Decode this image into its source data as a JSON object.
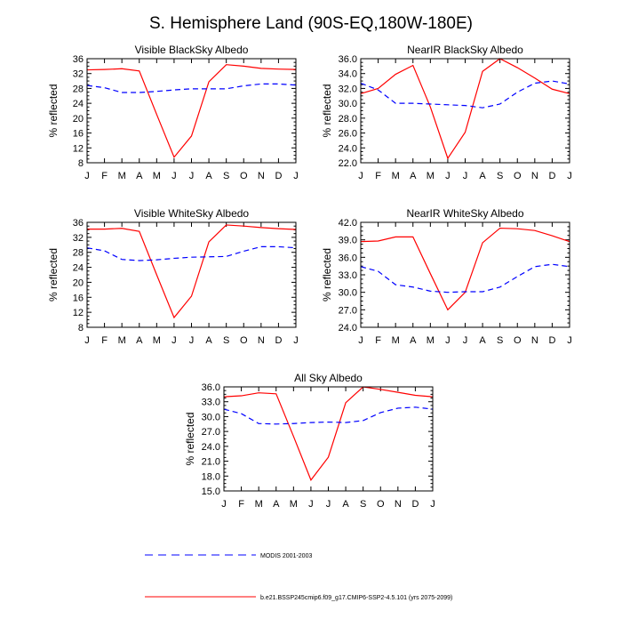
{
  "title": "S. Hemisphere Land (90S-EQ,180W-180E)",
  "colors": {
    "model": "#ff0000",
    "modis": "#0000ff"
  },
  "legend": {
    "modis": "MODIS 2001-2003",
    "model": "b.e21.BSSP245cmip6.f09_g17.CMIP6-SSP2-4.5.101 (yrs 2075-2099)"
  },
  "chart_data": [
    {
      "type": "line",
      "title": "Visible BlackSky Albedo",
      "ylabel": "% reflected",
      "xlabel": "",
      "categories": [
        "J",
        "F",
        "M",
        "A",
        "M",
        "J",
        "J",
        "A",
        "S",
        "O",
        "N",
        "D",
        "J"
      ],
      "ylim": [
        8,
        36
      ],
      "yticks": [
        "8",
        "12",
        "16",
        "20",
        "24",
        "28",
        "32",
        "36"
      ],
      "series": [
        {
          "name": "b.e21.BSSP245cmip6.f09_g17.CMIP6-SSP2-4.5.101 (yrs 2075-2099)",
          "style": "solid",
          "values": [
            33.0,
            33.1,
            33.3,
            32.7,
            21.0,
            9.5,
            15.2,
            29.8,
            34.4,
            34.0,
            33.4,
            33.2,
            33.1
          ]
        },
        {
          "name": "MODIS 2001-2003",
          "style": "dashed",
          "values": [
            28.8,
            28.2,
            26.9,
            26.9,
            27.2,
            27.6,
            27.9,
            27.9,
            27.9,
            28.7,
            29.2,
            29.2,
            28.9
          ]
        }
      ]
    },
    {
      "type": "line",
      "title": "NearIR BlackSky Albedo",
      "ylabel": "% reflected",
      "xlabel": "",
      "categories": [
        "J",
        "F",
        "M",
        "A",
        "M",
        "J",
        "J",
        "A",
        "S",
        "O",
        "N",
        "D",
        "J"
      ],
      "ylim": [
        22,
        36
      ],
      "yticks": [
        "22.0",
        "24.0",
        "26.0",
        "28.0",
        "30.0",
        "32.0",
        "34.0",
        "36.0"
      ],
      "series": [
        {
          "name": "b.e21.BSSP245cmip6.f09_g17.CMIP6-SSP2-4.5.101 (yrs 2075-2099)",
          "style": "solid",
          "values": [
            31.3,
            32.0,
            33.9,
            35.1,
            29.5,
            22.6,
            26.1,
            34.3,
            36.0,
            34.8,
            33.4,
            31.9,
            31.3
          ]
        },
        {
          "name": "MODIS 2001-2003",
          "style": "dashed",
          "values": [
            32.7,
            31.8,
            30.0,
            30.0,
            29.9,
            29.8,
            29.7,
            29.4,
            29.9,
            31.5,
            32.7,
            33.0,
            32.6
          ]
        }
      ]
    },
    {
      "type": "line",
      "title": "Visible WhiteSky Albedo",
      "ylabel": "% reflected",
      "xlabel": "",
      "categories": [
        "J",
        "F",
        "M",
        "A",
        "M",
        "J",
        "J",
        "A",
        "S",
        "O",
        "N",
        "D",
        "J"
      ],
      "ylim": [
        8,
        36
      ],
      "yticks": [
        "8",
        "12",
        "16",
        "20",
        "24",
        "28",
        "32",
        "36"
      ],
      "series": [
        {
          "name": "b.e21.BSSP245cmip6.f09_g17.CMIP6-SSP2-4.5.101 (yrs 2075-2099)",
          "style": "solid",
          "values": [
            34.2,
            34.2,
            34.4,
            33.6,
            22.0,
            10.6,
            16.3,
            30.8,
            35.3,
            35.0,
            34.6,
            34.3,
            34.1
          ]
        },
        {
          "name": "MODIS 2001-2003",
          "style": "dashed",
          "values": [
            29.2,
            28.4,
            26.1,
            25.8,
            26.0,
            26.4,
            26.7,
            26.8,
            26.9,
            28.3,
            29.5,
            29.5,
            29.2
          ]
        }
      ]
    },
    {
      "type": "line",
      "title": "NearIR WhiteSky Albedo",
      "ylabel": "% reflected",
      "xlabel": "",
      "categories": [
        "J",
        "F",
        "M",
        "A",
        "M",
        "J",
        "J",
        "A",
        "S",
        "O",
        "N",
        "D",
        "J"
      ],
      "ylim": [
        24,
        42
      ],
      "yticks": [
        "24.0",
        "27.0",
        "30.0",
        "33.0",
        "36.0",
        "39.0",
        "42.0"
      ],
      "series": [
        {
          "name": "b.e21.BSSP245cmip6.f09_g17.CMIP6-SSP2-4.5.101 (yrs 2075-2099)",
          "style": "solid",
          "values": [
            38.7,
            38.8,
            39.5,
            39.5,
            33.2,
            27.0,
            30.0,
            38.5,
            41.0,
            40.9,
            40.6,
            39.7,
            38.7
          ]
        },
        {
          "name": "MODIS 2001-2003",
          "style": "dashed",
          "values": [
            34.4,
            33.6,
            31.3,
            30.9,
            30.2,
            30.0,
            30.1,
            30.1,
            30.9,
            32.7,
            34.4,
            34.8,
            34.4
          ]
        }
      ]
    },
    {
      "type": "line",
      "title": "All Sky Albedo",
      "ylabel": "% reflected",
      "xlabel": "",
      "categories": [
        "J",
        "F",
        "M",
        "A",
        "M",
        "J",
        "J",
        "A",
        "S",
        "O",
        "N",
        "D",
        "J"
      ],
      "ylim": [
        15,
        36
      ],
      "yticks": [
        "15.0",
        "18.0",
        "21.0",
        "24.0",
        "27.0",
        "30.0",
        "33.0",
        "36.0"
      ],
      "series": [
        {
          "name": "b.e21.BSSP245cmip6.f09_g17.CMIP6-SSP2-4.5.101 (yrs 2075-2099)",
          "style": "solid",
          "values": [
            34.0,
            34.2,
            34.8,
            34.6,
            26.0,
            17.2,
            21.8,
            32.8,
            36.0,
            35.5,
            34.9,
            34.3,
            34.0
          ]
        },
        {
          "name": "MODIS 2001-2003",
          "style": "dashed",
          "values": [
            31.5,
            30.6,
            28.6,
            28.5,
            28.6,
            28.8,
            28.9,
            28.8,
            29.2,
            30.8,
            31.7,
            31.9,
            31.5
          ]
        }
      ]
    }
  ]
}
